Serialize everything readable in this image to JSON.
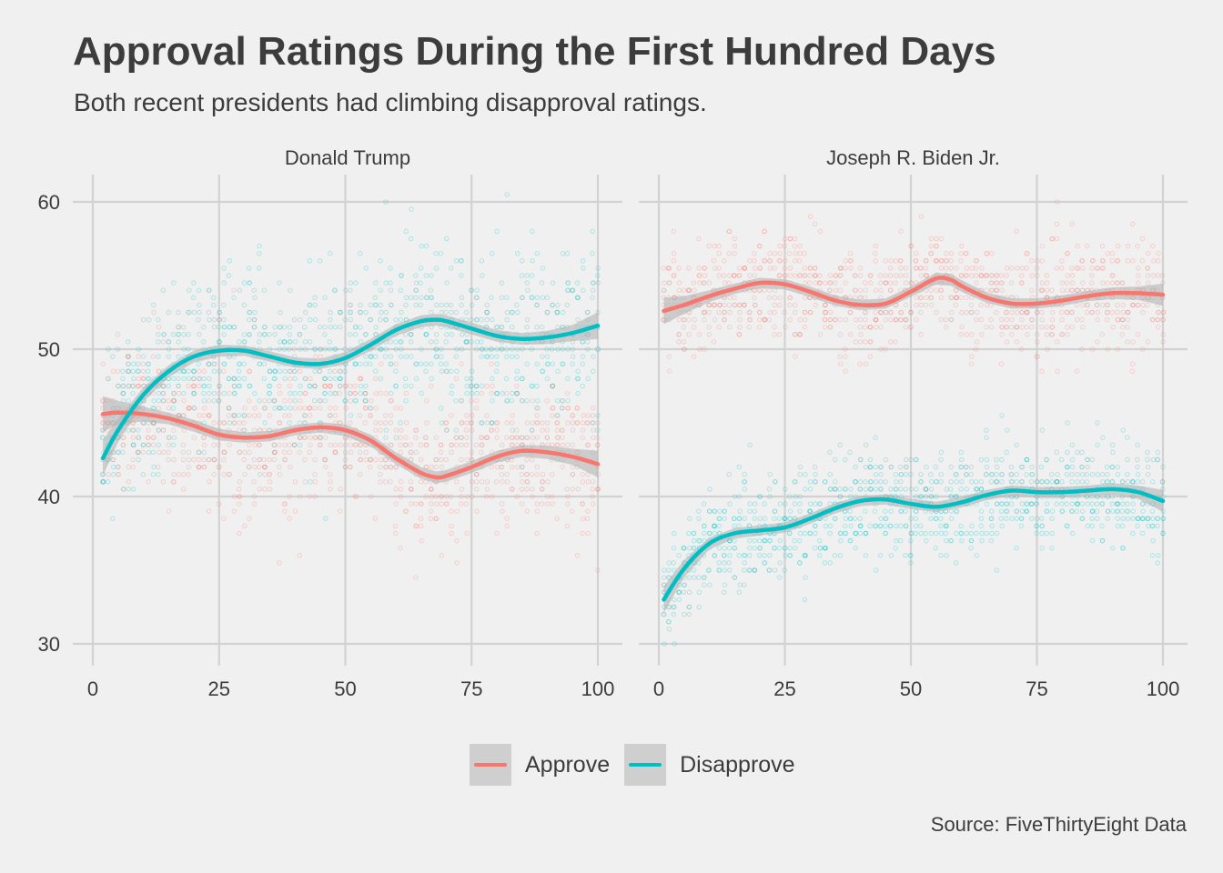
{
  "title": "Approval Ratings During the First Hundred Days",
  "subtitle": "Both recent presidents had climbing disapproval ratings.",
  "caption": "Source: FiveThirtyEight Data",
  "colors": {
    "background": "#f0f0f0",
    "grid": "#d2d2d2",
    "text": "#3c3c3c",
    "ribbon": "#b4b4b4",
    "approve": "#f8766d",
    "disapprove": "#00bfc4"
  },
  "legend": [
    {
      "key": "approve",
      "label": "Approve",
      "color": "#f8766d"
    },
    {
      "key": "disapprove",
      "label": "Disapprove",
      "color": "#00bfc4"
    }
  ],
  "chart_data": {
    "type": "line",
    "description_type": "faceted smoothed line with scatter points",
    "xlim": [
      0,
      100
    ],
    "ylim": [
      29,
      61.5
    ],
    "x_ticks": [
      0,
      25,
      50,
      75,
      100
    ],
    "y_ticks": [
      30,
      40,
      50,
      60
    ],
    "grid": true,
    "legend_position": "bottom",
    "facets": [
      {
        "name": "Donald Trump",
        "series": [
          {
            "name": "Approve",
            "color": "#f8766d",
            "x": [
              2,
              5,
              10,
              15,
              20,
              25,
              30,
              35,
              40,
              45,
              50,
              55,
              60,
              65,
              68,
              70,
              75,
              80,
              85,
              90,
              95,
              100
            ],
            "y": [
              45.6,
              45.7,
              45.6,
              45.3,
              44.8,
              44.2,
              44.0,
              44.1,
              44.5,
              44.7,
              44.5,
              43.8,
              42.6,
              41.6,
              41.3,
              41.4,
              42.0,
              42.7,
              43.1,
              43.0,
              42.7,
              42.2
            ],
            "ribbon_halfwidth": [
              1.2,
              0.8,
              0.5,
              0.4,
              0.4,
              0.4,
              0.35,
              0.35,
              0.35,
              0.35,
              0.4,
              0.4,
              0.4,
              0.4,
              0.4,
              0.4,
              0.4,
              0.4,
              0.4,
              0.45,
              0.55,
              0.9
            ]
          },
          {
            "name": "Disapprove",
            "color": "#00bfc4",
            "x": [
              2,
              5,
              10,
              15,
              20,
              25,
              30,
              35,
              40,
              45,
              50,
              55,
              60,
              65,
              68,
              70,
              75,
              80,
              85,
              90,
              95,
              100
            ],
            "y": [
              42.6,
              44.5,
              46.9,
              48.5,
              49.5,
              49.9,
              49.9,
              49.5,
              49.1,
              49.0,
              49.4,
              50.3,
              51.3,
              51.9,
              52.0,
              51.9,
              51.4,
              50.9,
              50.7,
              50.8,
              51.1,
              51.6
            ],
            "ribbon_halfwidth": [
              1.2,
              0.8,
              0.5,
              0.4,
              0.4,
              0.4,
              0.35,
              0.35,
              0.35,
              0.35,
              0.4,
              0.4,
              0.4,
              0.4,
              0.4,
              0.4,
              0.4,
              0.4,
              0.4,
              0.45,
              0.55,
              0.9
            ]
          }
        ],
        "scatter_spread": {
          "approve": 2.6,
          "disapprove": 2.8
        }
      },
      {
        "name": "Joseph R. Biden Jr.",
        "series": [
          {
            "name": "Approve",
            "color": "#f8766d",
            "x": [
              1,
              5,
              10,
              15,
              20,
              25,
              30,
              35,
              40,
              45,
              50,
              55,
              58,
              60,
              65,
              70,
              75,
              80,
              85,
              90,
              95,
              100
            ],
            "y": [
              52.6,
              53.0,
              53.6,
              54.1,
              54.5,
              54.4,
              53.9,
              53.3,
              53.0,
              53.1,
              53.9,
              54.8,
              54.7,
              54.3,
              53.5,
              53.1,
              53.1,
              53.3,
              53.6,
              53.8,
              53.8,
              53.7
            ],
            "ribbon_halfwidth": [
              0.9,
              0.6,
              0.4,
              0.35,
              0.35,
              0.35,
              0.35,
              0.35,
              0.35,
              0.35,
              0.35,
              0.4,
              0.4,
              0.4,
              0.35,
              0.35,
              0.35,
              0.35,
              0.35,
              0.4,
              0.45,
              0.75
            ]
          },
          {
            "name": "Disapprove",
            "color": "#00bfc4",
            "x": [
              1,
              5,
              10,
              15,
              20,
              25,
              30,
              35,
              40,
              45,
              50,
              55,
              60,
              65,
              70,
              75,
              80,
              85,
              90,
              95,
              100
            ],
            "y": [
              33.0,
              35.1,
              36.8,
              37.5,
              37.7,
              37.9,
              38.5,
              39.2,
              39.7,
              39.8,
              39.5,
              39.3,
              39.6,
              40.1,
              40.4,
              40.3,
              40.3,
              40.4,
              40.5,
              40.3,
              39.7
            ],
            "ribbon_halfwidth": [
              0.9,
              0.6,
              0.4,
              0.35,
              0.35,
              0.35,
              0.35,
              0.35,
              0.35,
              0.35,
              0.35,
              0.35,
              0.35,
              0.35,
              0.35,
              0.35,
              0.35,
              0.35,
              0.4,
              0.45,
              0.75
            ]
          }
        ],
        "scatter_spread": {
          "approve": 1.8,
          "disapprove": 1.8
        }
      }
    ]
  }
}
